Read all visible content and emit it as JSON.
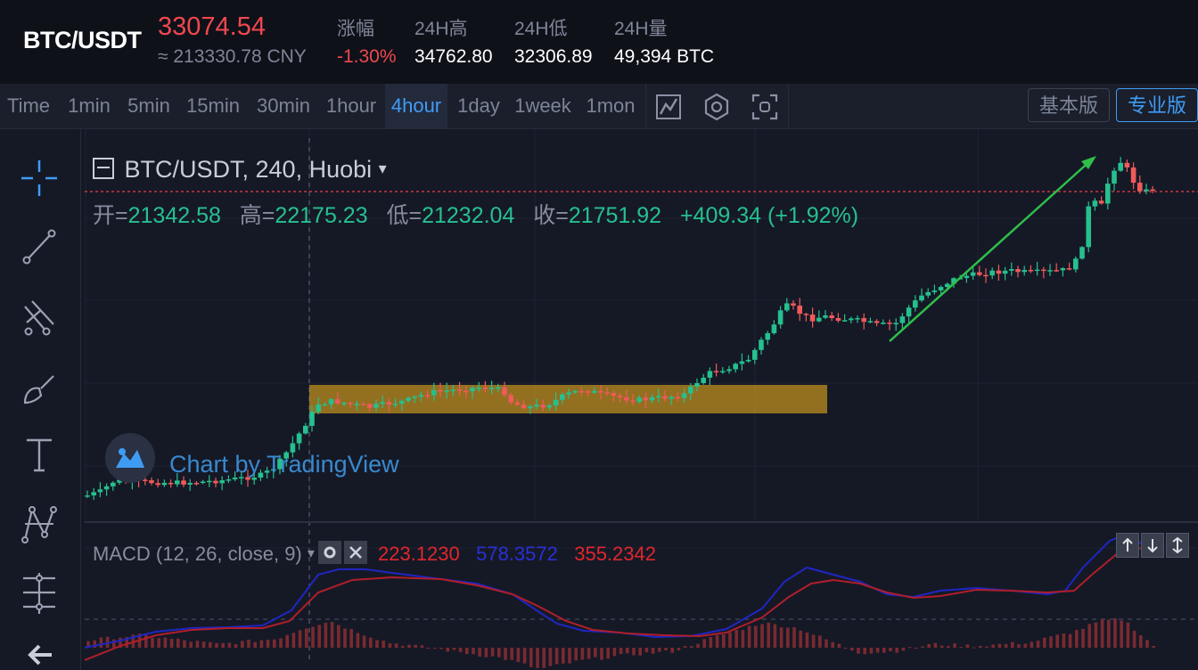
{
  "ticker": {
    "pair": "BTC/USDT",
    "price": "33074.54",
    "cny": "≈ 213330.78 CNY",
    "stats": [
      {
        "label": "涨幅",
        "value": "-1.30%",
        "color": "#f0484f"
      },
      {
        "label": "24H高",
        "value": "34762.80",
        "color": "#ffffff"
      },
      {
        "label": "24H低",
        "value": "32306.89",
        "color": "#ffffff"
      },
      {
        "label": "24H量",
        "value": "49,394 BTC",
        "color": "#ffffff"
      }
    ]
  },
  "toolbar": {
    "timeframes": [
      "Time",
      "1min",
      "5min",
      "15min",
      "30min",
      "1hour",
      "4hour",
      "1day",
      "1week",
      "1mon"
    ],
    "active_timeframe": "4hour",
    "icons": [
      "indicator-icon",
      "settings-hex-icon",
      "fullscreen-icon"
    ],
    "basic_label": "基本版",
    "pro_label": "专业版"
  },
  "left_tools": [
    "crosshair-icon",
    "trend-line-icon",
    "pitchfork-icon",
    "brush-icon",
    "text-icon",
    "pattern-icon",
    "measure-icon",
    "back-arrow-icon"
  ],
  "chart": {
    "symbol_label": "BTC/USDT, 240, Huobi",
    "ohlc": {
      "open_label": "开=",
      "open": "21342.58",
      "high_label": "高=",
      "high": "22175.23",
      "low_label": "低=",
      "low": "21232.04",
      "close_label": "收=",
      "close": "21751.92",
      "change": "+409.34 (+1.92%)"
    },
    "watermark": "Chart by TradingView",
    "colors": {
      "up": "#26c08f",
      "down": "#f05a5a",
      "zone": "#c8961e",
      "arrow": "#2fbf4a"
    }
  },
  "macd": {
    "label": "MACD (12, 26, close, 9)",
    "values": [
      {
        "value": "223.1230",
        "color": "#e0262b"
      },
      {
        "value": "578.3572",
        "color": "#2a2fd6"
      },
      {
        "value": "355.2342",
        "color": "#e0262b"
      }
    ]
  }
}
